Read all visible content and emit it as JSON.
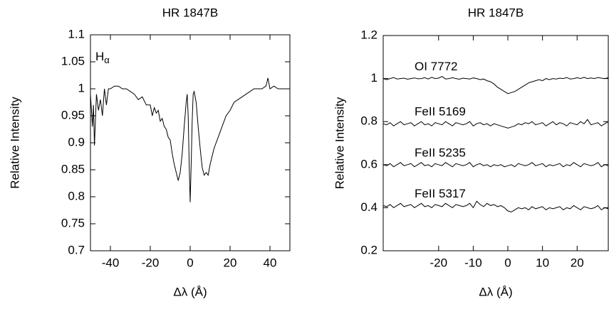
{
  "chart_data": [
    {
      "type": "line",
      "title": "HR 1847B",
      "xlabel": "Δλ (Å)",
      "ylabel": "Relative Intensity",
      "annotation": {
        "text": "H",
        "subscript": "α"
      },
      "x": [
        -50,
        -49,
        -48.5,
        -48,
        -47,
        -46,
        -45,
        -44,
        -43,
        -42,
        -41,
        -40,
        -38,
        -36,
        -34,
        -32,
        -30,
        -28,
        -26,
        -24,
        -22,
        -20,
        -19,
        -18,
        -17,
        -16,
        -15,
        -14,
        -13,
        -12,
        -11,
        -10,
        -9,
        -8,
        -7,
        -6,
        -5,
        -4,
        -3,
        -2,
        -1.5,
        -1,
        -0.5,
        0,
        0.5,
        1,
        1.5,
        2,
        3,
        4,
        5,
        6,
        7,
        8,
        9,
        10,
        11,
        12,
        14,
        16,
        18,
        20,
        22,
        24,
        26,
        28,
        30,
        32,
        34,
        36,
        38,
        39,
        40,
        42,
        44,
        46,
        48,
        50
      ],
      "series": [
        {
          "color": "#000000",
          "values": [
            0.99,
            0.93,
            0.97,
            0.895,
            0.99,
            0.96,
            0.98,
            0.95,
            1.0,
            0.97,
            1.0,
            1.0,
            1.005,
            1.005,
            1.0,
            1.0,
            0.995,
            0.99,
            0.98,
            0.985,
            0.97,
            0.97,
            0.95,
            0.965,
            0.955,
            0.96,
            0.94,
            0.945,
            0.93,
            0.925,
            0.91,
            0.905,
            0.88,
            0.86,
            0.845,
            0.83,
            0.845,
            0.88,
            0.93,
            0.975,
            0.99,
            0.95,
            0.86,
            0.79,
            0.86,
            0.94,
            0.99,
            0.995,
            0.975,
            0.93,
            0.89,
            0.855,
            0.84,
            0.845,
            0.84,
            0.86,
            0.875,
            0.89,
            0.91,
            0.93,
            0.95,
            0.96,
            0.975,
            0.98,
            0.985,
            0.99,
            0.995,
            1.0,
            1.0,
            1.0,
            1.005,
            1.02,
            1.0,
            1.005,
            1.0,
            1.0,
            1.0,
            1.0
          ]
        }
      ],
      "xlim": [
        -50,
        50
      ],
      "ylim": [
        0.7,
        1.1
      ],
      "xticks": [
        -40,
        -20,
        0,
        20,
        40
      ],
      "yticks": [
        0.7,
        0.75,
        0.8,
        0.85,
        0.9,
        0.95,
        1,
        1.05,
        1.1
      ]
    },
    {
      "type": "line",
      "title": "HR 1847B",
      "xlabel": "Δλ (Å)",
      "ylabel": "Relative Intensity",
      "x": [
        -36,
        -35,
        -34,
        -33,
        -32,
        -31,
        -30,
        -29,
        -28,
        -27,
        -26,
        -25,
        -24,
        -23,
        -22,
        -21,
        -20,
        -19,
        -18,
        -17,
        -16,
        -15,
        -14,
        -13,
        -12,
        -11,
        -10,
        -9,
        -8,
        -7,
        -6,
        -5,
        -4,
        -3,
        -2,
        -1,
        0,
        1,
        2,
        3,
        4,
        5,
        6,
        7,
        8,
        9,
        10,
        11,
        12,
        13,
        14,
        15,
        16,
        17,
        18,
        19,
        20,
        21,
        22,
        23,
        24,
        25,
        26,
        27,
        28,
        29
      ],
      "series": [
        {
          "name": "OI 7772",
          "color": "#000000",
          "values": [
            1.0,
            0.995,
            1.0,
            1.005,
            0.998,
            1.0,
            1.002,
            0.997,
            1.0,
            1.003,
            0.999,
            1.0,
            1.004,
            0.998,
            1.006,
            1.0,
            1.002,
            1.01,
            0.998,
            1.0,
            1.004,
            1.0,
            0.997,
            1.002,
            1.0,
            0.998,
            1.003,
            1.0,
            0.995,
            0.998,
            0.99,
            0.985,
            0.975,
            0.96,
            0.95,
            0.94,
            0.93,
            0.935,
            0.94,
            0.95,
            0.96,
            0.97,
            0.98,
            0.985,
            0.99,
            0.995,
            0.99,
            1.0,
            0.995,
            1.0,
            0.998,
            1.002,
            1.0,
            1.005,
            0.998,
            1.0,
            1.004,
            1.0,
            1.006,
            1.0,
            1.003,
            1.0,
            1.005,
            1.002,
            1.0,
            1.004
          ]
        },
        {
          "name": "FeII 5169",
          "color": "#000000",
          "values": [
            0.79,
            0.785,
            0.795,
            0.78,
            0.79,
            0.8,
            0.785,
            0.79,
            0.795,
            0.78,
            0.79,
            0.8,
            0.785,
            0.79,
            0.78,
            0.795,
            0.79,
            0.785,
            0.8,
            0.79,
            0.78,
            0.795,
            0.79,
            0.785,
            0.79,
            0.8,
            0.78,
            0.79,
            0.795,
            0.785,
            0.79,
            0.78,
            0.79,
            0.785,
            0.78,
            0.775,
            0.77,
            0.775,
            0.78,
            0.79,
            0.785,
            0.795,
            0.79,
            0.8,
            0.785,
            0.79,
            0.795,
            0.78,
            0.79,
            0.8,
            0.785,
            0.795,
            0.79,
            0.78,
            0.795,
            0.79,
            0.785,
            0.8,
            0.79,
            0.81,
            0.785,
            0.79,
            0.795,
            0.78,
            0.79,
            0.8
          ]
        },
        {
          "name": "FeII 5235",
          "color": "#000000",
          "values": [
            0.6,
            0.595,
            0.605,
            0.59,
            0.6,
            0.61,
            0.595,
            0.6,
            0.605,
            0.59,
            0.6,
            0.61,
            0.595,
            0.6,
            0.59,
            0.605,
            0.6,
            0.595,
            0.61,
            0.6,
            0.59,
            0.605,
            0.6,
            0.595,
            0.6,
            0.61,
            0.59,
            0.6,
            0.605,
            0.595,
            0.6,
            0.59,
            0.6,
            0.595,
            0.6,
            0.59,
            0.595,
            0.6,
            0.59,
            0.605,
            0.6,
            0.595,
            0.6,
            0.61,
            0.595,
            0.6,
            0.605,
            0.59,
            0.6,
            0.595,
            0.6,
            0.605,
            0.59,
            0.6,
            0.595,
            0.61,
            0.6,
            0.59,
            0.605,
            0.6,
            0.595,
            0.6,
            0.61,
            0.59,
            0.6,
            0.595
          ]
        },
        {
          "name": "FeII 5317",
          "color": "#000000",
          "values": [
            0.41,
            0.405,
            0.415,
            0.4,
            0.41,
            0.42,
            0.405,
            0.41,
            0.415,
            0.4,
            0.41,
            0.42,
            0.405,
            0.41,
            0.4,
            0.415,
            0.41,
            0.405,
            0.42,
            0.41,
            0.4,
            0.415,
            0.41,
            0.405,
            0.41,
            0.42,
            0.4,
            0.43,
            0.415,
            0.405,
            0.42,
            0.41,
            0.415,
            0.405,
            0.41,
            0.4,
            0.385,
            0.38,
            0.39,
            0.4,
            0.395,
            0.4,
            0.39,
            0.405,
            0.395,
            0.4,
            0.405,
            0.39,
            0.4,
            0.395,
            0.4,
            0.405,
            0.39,
            0.4,
            0.395,
            0.41,
            0.4,
            0.39,
            0.405,
            0.4,
            0.395,
            0.4,
            0.41,
            0.39,
            0.4,
            0.395
          ]
        }
      ],
      "xlim": [
        -36,
        29
      ],
      "ylim": [
        0.2,
        1.2
      ],
      "xticks": [
        -20,
        -10,
        0,
        10,
        20
      ],
      "yticks": [
        0.2,
        0.4,
        0.6,
        0.8,
        1,
        1.2
      ]
    }
  ]
}
